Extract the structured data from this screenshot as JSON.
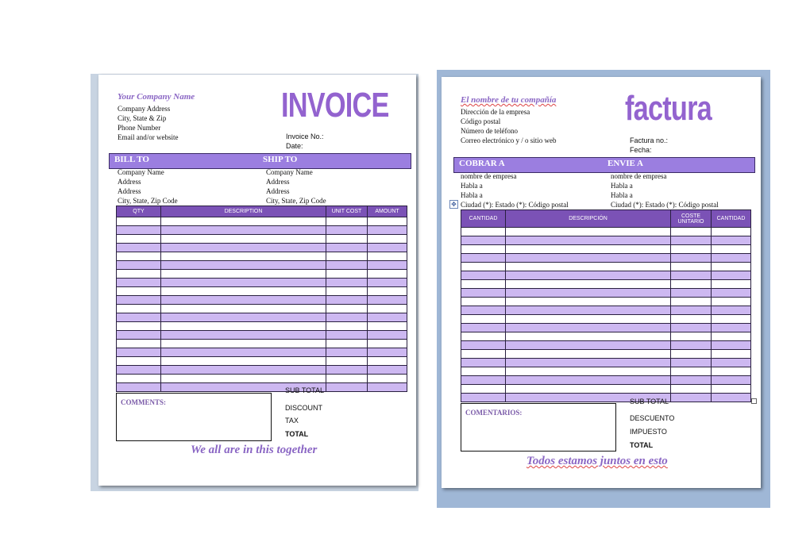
{
  "left": {
    "company_name": "Your Company Name",
    "address_lines": [
      "Company Address",
      "City, State & Zip",
      "Phone Number",
      "Email and/or website"
    ],
    "title": "INVOICE",
    "invoice_no": "Invoice No.:",
    "date": "Date:",
    "bill_to": "BILL TO",
    "ship_to": "SHIP TO",
    "bill_lines": [
      "Company Name",
      "Address",
      "Address",
      "City, State, Zip Code"
    ],
    "ship_lines": [
      "Company Name",
      "Address",
      "Address",
      "City, State, Zip Code"
    ],
    "columns": [
      "QTY",
      "DESCRIPTION",
      "UNIT COST",
      "AMOUNT"
    ],
    "comments_label": "COMMENTS:",
    "totals": [
      "SUB TOTAL",
      "DISCOUNT",
      "TAX",
      "TOTAL"
    ],
    "slogan": "We all are in this together"
  },
  "right": {
    "company_name": "El nombre de tu compañía",
    "address_lines": [
      "Dirección  de la empresa",
      "Código postal",
      "Número de teléfono",
      "Correo electrónico  y / o sitio web"
    ],
    "title": "factura",
    "invoice_no": "Factura no.:",
    "date": "Fecha:",
    "bill_to": "COBRAR A",
    "ship_to": "ENVIE A",
    "bill_lines": [
      "nombre de empresa",
      "Habla a",
      "Habla a",
      "Ciudad (*): Estado  (*):  Código postal"
    ],
    "ship_lines": [
      "nombre de empresa",
      "Habla a",
      "Habla a",
      "Ciudad (*): Estado  (*):  Código postal"
    ],
    "columns": [
      "CANTIDAD",
      "DESCRIPCIÓN",
      "COSTE UNITARIO",
      "CANTIDAD"
    ],
    "comments_label": "COMENTARIOS:",
    "totals": [
      "SUB TOTAL",
      "DESCUENTO",
      "IMPUESTO",
      "TOTAL"
    ],
    "slogan": "Todos estamos juntos en esto"
  },
  "colors": {
    "accent": "#9363cf",
    "band": "#9b7ee0",
    "row_alt": "#cdb8f1",
    "header": "#7b52b6"
  },
  "icons": {
    "move_handle": "move-handle-icon"
  }
}
